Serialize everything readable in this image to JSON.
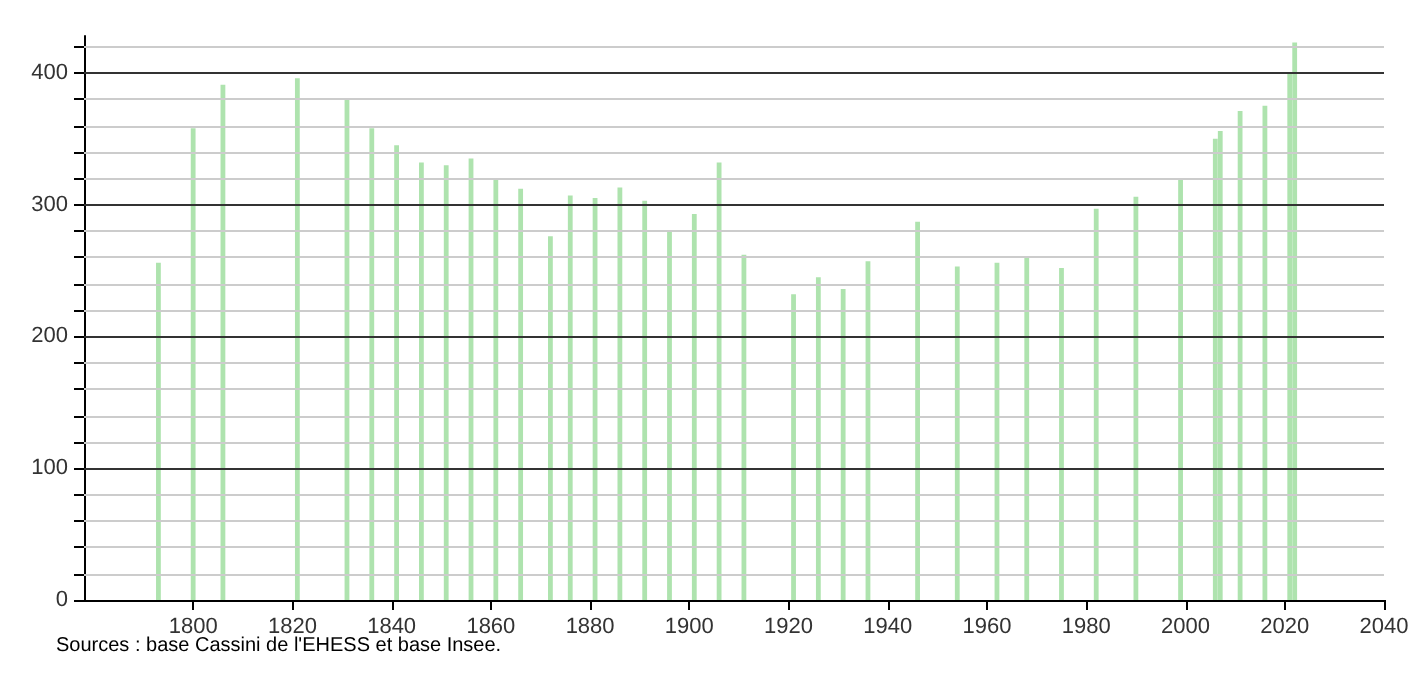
{
  "chart_data": {
    "type": "bar",
    "annotations": [
      "Sources : base Cassini de l'EHESS et base Insee."
    ],
    "x": [
      1793,
      1800,
      1806,
      1821,
      1831,
      1836,
      1841,
      1846,
      1851,
      1856,
      1861,
      1866,
      1872,
      1876,
      1881,
      1886,
      1891,
      1896,
      1901,
      1906,
      1911,
      1921,
      1926,
      1931,
      1936,
      1946,
      1954,
      1962,
      1968,
      1975,
      1982,
      1990,
      1999,
      2006,
      2007,
      2011,
      2016,
      2021,
      2022
    ],
    "values": [
      256,
      358,
      391,
      396,
      380,
      358,
      345,
      332,
      330,
      335,
      320,
      312,
      276,
      307,
      305,
      313,
      303,
      280,
      293,
      332,
      262,
      232,
      245,
      236,
      257,
      287,
      253,
      256,
      260,
      252,
      297,
      306,
      319,
      350,
      356,
      371,
      375,
      400,
      423
    ],
    "color": "#aee3ae",
    "xlim": [
      1778,
      2040
    ],
    "xticks": [
      1800,
      1820,
      1840,
      1860,
      1880,
      1900,
      1920,
      1940,
      1960,
      1980,
      2000,
      2020,
      2040
    ],
    "ylim": [
      0,
      428
    ],
    "yticks": [
      0,
      {
        "value": 20,
        "label": null
      },
      {
        "value": 40,
        "label": null
      },
      {
        "value": 60,
        "label": null
      },
      {
        "value": 80,
        "label": null
      },
      100,
      {
        "value": 120,
        "label": null
      },
      {
        "value": 140,
        "label": null
      },
      {
        "value": 160,
        "label": null
      },
      {
        "value": 180,
        "label": null
      },
      200,
      {
        "value": 220,
        "label": null
      },
      {
        "value": 240,
        "label": null
      },
      {
        "value": 260,
        "label": null
      },
      {
        "value": 280,
        "label": null
      },
      300,
      {
        "value": 320,
        "label": null
      },
      {
        "value": 340,
        "label": null
      },
      {
        "value": 360,
        "label": null
      },
      {
        "value": 380,
        "label": null
      },
      400,
      {
        "value": 420,
        "label": null
      }
    ],
    "grid": "y"
  }
}
